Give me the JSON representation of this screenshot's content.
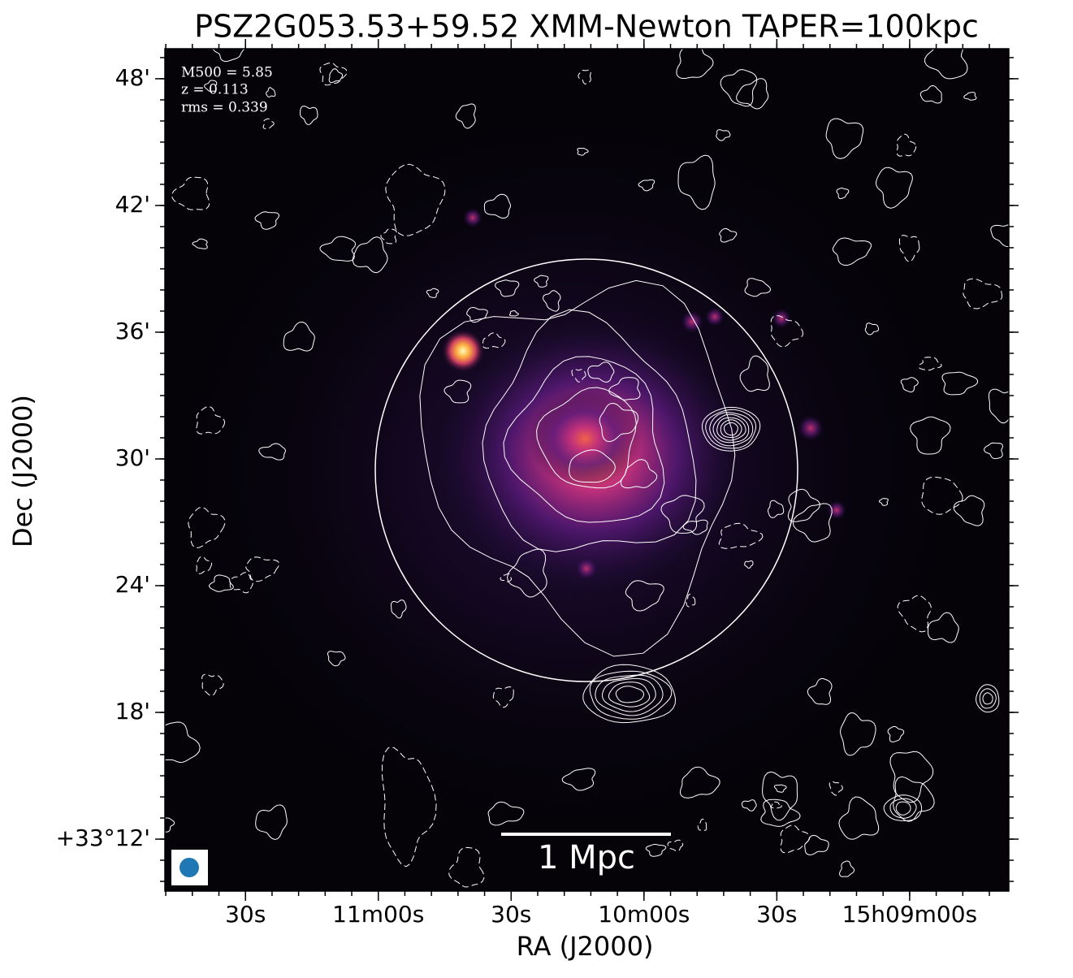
{
  "chart_data": {
    "type": "image",
    "title": "PSZ2G053.53+59.52 XMM-Newton TAPER=100kpc",
    "xlabel": "RA (J2000)",
    "ylabel": "Dec (J2000)",
    "annotations": [
      "M500 = 5.85",
      "z = 0.113",
      "rms = 0.339"
    ],
    "scale_bar_label": "1 Mpc",
    "xlim": [
      708.2,
      517.6
    ],
    "xticks": [
      {
        "value": 690,
        "label": "30s"
      },
      {
        "value": 660,
        "label": "11m00s"
      },
      {
        "value": 630,
        "label": "30s"
      },
      {
        "value": 600,
        "label": "10m00s"
      },
      {
        "value": 570,
        "label": "30s"
      },
      {
        "value": 540,
        "label": "15h09m00s"
      }
    ],
    "ylim": [
      9.54,
      49.42
    ],
    "yticks": [
      {
        "value": 12,
        "label": "+33°12'"
      },
      {
        "value": 18,
        "label": "18'"
      },
      {
        "value": 24,
        "label": "24'"
      },
      {
        "value": 30,
        "label": "30'"
      },
      {
        "value": 36,
        "label": "36'"
      },
      {
        "value": 42,
        "label": "42'"
      },
      {
        "value": 48,
        "label": "48'"
      }
    ]
  }
}
